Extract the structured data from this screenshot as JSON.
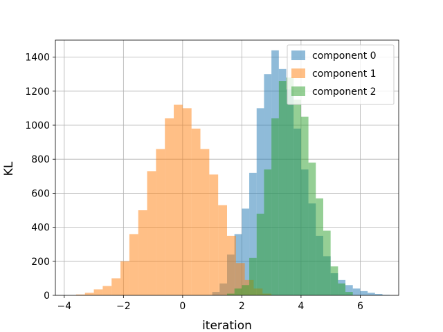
{
  "chart_data": {
    "type": "histogram",
    "title": "",
    "xlabel": "iteration",
    "ylabel": "KL",
    "xlim": [
      -4.3,
      7.3
    ],
    "ylim": [
      0,
      1500
    ],
    "xticks": [
      -4,
      -2,
      0,
      2,
      4,
      6
    ],
    "yticks": [
      0,
      200,
      400,
      600,
      800,
      1000,
      1200,
      1400
    ],
    "grid": true,
    "legend_position": "top-right",
    "alpha": 0.5,
    "series": [
      {
        "name": "component 0",
        "color": "#1f77b4",
        "bins": [
          {
            "x0": 1.0,
            "x1": 1.25,
            "count": 20
          },
          {
            "x0": 1.25,
            "x1": 1.5,
            "count": 70
          },
          {
            "x0": 1.5,
            "x1": 1.75,
            "count": 240
          },
          {
            "x0": 1.75,
            "x1": 2.0,
            "count": 360
          },
          {
            "x0": 2.0,
            "x1": 2.25,
            "count": 510
          },
          {
            "x0": 2.25,
            "x1": 2.5,
            "count": 720
          },
          {
            "x0": 2.5,
            "x1": 2.75,
            "count": 1100
          },
          {
            "x0": 2.75,
            "x1": 3.0,
            "count": 1300
          },
          {
            "x0": 3.0,
            "x1": 3.25,
            "count": 1440
          },
          {
            "x0": 3.25,
            "x1": 3.5,
            "count": 1330
          },
          {
            "x0": 3.5,
            "x1": 3.75,
            "count": 1210
          },
          {
            "x0": 3.75,
            "x1": 4.0,
            "count": 980
          },
          {
            "x0": 4.0,
            "x1": 4.25,
            "count": 740
          },
          {
            "x0": 4.25,
            "x1": 4.5,
            "count": 540
          },
          {
            "x0": 4.5,
            "x1": 4.75,
            "count": 350
          },
          {
            "x0": 4.75,
            "x1": 5.0,
            "count": 230
          },
          {
            "x0": 5.0,
            "x1": 5.25,
            "count": 130
          },
          {
            "x0": 5.25,
            "x1": 5.5,
            "count": 90
          },
          {
            "x0": 5.5,
            "x1": 5.75,
            "count": 60
          },
          {
            "x0": 5.75,
            "x1": 6.0,
            "count": 40
          },
          {
            "x0": 6.0,
            "x1": 6.25,
            "count": 25
          },
          {
            "x0": 6.25,
            "x1": 6.5,
            "count": 15
          },
          {
            "x0": 6.5,
            "x1": 6.75,
            "count": 8
          },
          {
            "x0": 6.75,
            "x1": 7.0,
            "count": 3
          }
        ]
      },
      {
        "name": "component 1",
        "color": "#ff7f0e",
        "bins": [
          {
            "x0": -3.6,
            "x1": -3.3,
            "count": 5
          },
          {
            "x0": -3.3,
            "x1": -3.0,
            "count": 15
          },
          {
            "x0": -3.0,
            "x1": -2.7,
            "count": 35
          },
          {
            "x0": -2.7,
            "x1": -2.4,
            "count": 55
          },
          {
            "x0": -2.4,
            "x1": -2.1,
            "count": 100
          },
          {
            "x0": -2.1,
            "x1": -1.8,
            "count": 200
          },
          {
            "x0": -1.8,
            "x1": -1.5,
            "count": 360
          },
          {
            "x0": -1.5,
            "x1": -1.2,
            "count": 500
          },
          {
            "x0": -1.2,
            "x1": -0.9,
            "count": 730
          },
          {
            "x0": -0.9,
            "x1": -0.6,
            "count": 860
          },
          {
            "x0": -0.6,
            "x1": -0.3,
            "count": 1040
          },
          {
            "x0": -0.3,
            "x1": 0.0,
            "count": 1120
          },
          {
            "x0": 0.0,
            "x1": 0.3,
            "count": 1100
          },
          {
            "x0": 0.3,
            "x1": 0.6,
            "count": 980
          },
          {
            "x0": 0.6,
            "x1": 0.9,
            "count": 860
          },
          {
            "x0": 0.9,
            "x1": 1.2,
            "count": 710
          },
          {
            "x0": 1.2,
            "x1": 1.5,
            "count": 530
          },
          {
            "x0": 1.5,
            "x1": 1.8,
            "count": 350
          },
          {
            "x0": 1.8,
            "x1": 2.1,
            "count": 190
          },
          {
            "x0": 2.1,
            "x1": 2.4,
            "count": 90
          },
          {
            "x0": 2.4,
            "x1": 2.7,
            "count": 40
          },
          {
            "x0": 2.7,
            "x1": 3.0,
            "count": 10
          }
        ]
      },
      {
        "name": "component 2",
        "color": "#2ca02c",
        "bins": [
          {
            "x0": 1.5,
            "x1": 1.75,
            "count": 10
          },
          {
            "x0": 1.75,
            "x1": 2.0,
            "count": 40
          },
          {
            "x0": 2.0,
            "x1": 2.25,
            "count": 60
          },
          {
            "x0": 2.25,
            "x1": 2.5,
            "count": 220
          },
          {
            "x0": 2.5,
            "x1": 2.75,
            "count": 480
          },
          {
            "x0": 2.75,
            "x1": 3.0,
            "count": 740
          },
          {
            "x0": 3.0,
            "x1": 3.25,
            "count": 1040
          },
          {
            "x0": 3.25,
            "x1": 3.5,
            "count": 1260
          },
          {
            "x0": 3.5,
            "x1": 3.75,
            "count": 1280
          },
          {
            "x0": 3.75,
            "x1": 4.0,
            "count": 1150
          },
          {
            "x0": 4.0,
            "x1": 4.25,
            "count": 1050
          },
          {
            "x0": 4.25,
            "x1": 4.5,
            "count": 780
          },
          {
            "x0": 4.5,
            "x1": 4.75,
            "count": 570
          },
          {
            "x0": 4.75,
            "x1": 5.0,
            "count": 380
          },
          {
            "x0": 5.0,
            "x1": 5.25,
            "count": 170
          },
          {
            "x0": 5.25,
            "x1": 5.5,
            "count": 70
          },
          {
            "x0": 5.5,
            "x1": 5.75,
            "count": 20
          }
        ]
      }
    ]
  }
}
